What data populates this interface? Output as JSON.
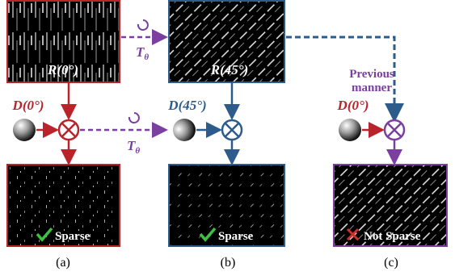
{
  "top": {
    "r0": "R(0°)",
    "r45": "R(45°)"
  },
  "transform": {
    "base": "T",
    "sub": "θ"
  },
  "previous": [
    "Previous",
    "manner"
  ],
  "kernels": [
    "D(0°)",
    "D(45°)",
    "D(0°)"
  ],
  "results": [
    "Sparse",
    "Sparse",
    "Not Sparse"
  ],
  "captions": [
    "(a)",
    "(b)",
    "(c)"
  ]
}
